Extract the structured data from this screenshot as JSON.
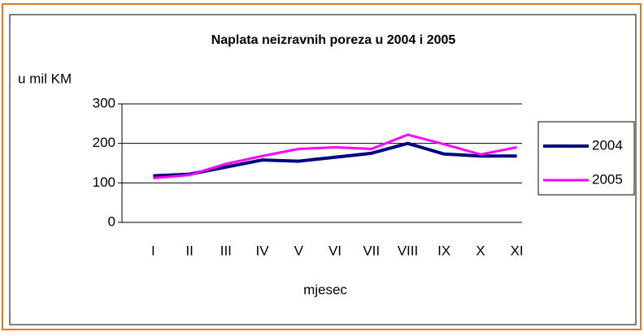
{
  "chart_data": {
    "type": "line",
    "title": "Naplata neizravnih poreza u 2004 i 2005",
    "y_label": "u mil KM",
    "x_label": "mjesec",
    "categories": [
      "I",
      "II",
      "III",
      "IV",
      "V",
      "VI",
      "VII",
      "VIII",
      "IX",
      "X",
      "XI"
    ],
    "series": [
      {
        "name": "2004",
        "color": "#000080",
        "values": [
          118,
          122,
          140,
          158,
          155,
          165,
          175,
          200,
          173,
          168,
          168
        ]
      },
      {
        "name": "2005",
        "color": "#ff00ff",
        "values": [
          112,
          120,
          148,
          168,
          186,
          190,
          186,
          222,
          198,
          172,
          190
        ]
      }
    ],
    "ylim": [
      0,
      300
    ],
    "yticks": [
      0,
      100,
      200,
      300
    ],
    "grid": true,
    "legend": "right"
  }
}
